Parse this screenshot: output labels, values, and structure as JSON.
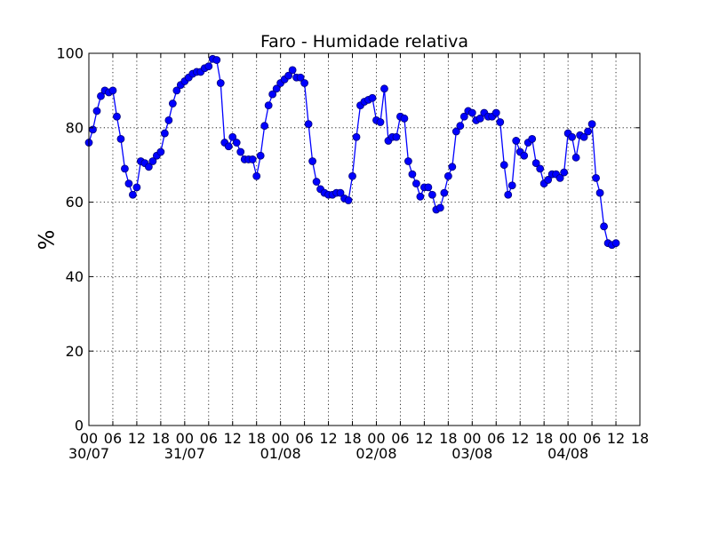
{
  "chart_data": {
    "type": "line",
    "title": "Faro - Humidade relativa",
    "ylabel": "%",
    "xlabel": "",
    "ylim": [
      0,
      100
    ],
    "yticks": [
      0,
      20,
      40,
      60,
      80,
      100
    ],
    "xlim": [
      0,
      138
    ],
    "grid": true,
    "x_tick_positions": [
      0,
      6,
      12,
      18,
      24,
      30,
      36,
      42,
      48,
      54,
      60,
      66,
      72,
      78,
      84,
      90,
      96,
      102,
      108,
      114,
      120,
      126,
      132,
      138
    ],
    "x_tick_labels": [
      "00",
      "06",
      "12",
      "18",
      "00",
      "06",
      "12",
      "18",
      "00",
      "06",
      "12",
      "18",
      "00",
      "06",
      "12",
      "18",
      "00",
      "06",
      "12",
      "18",
      "00",
      "06",
      "12",
      "18"
    ],
    "x_tick_labels_shown": 24,
    "date_labels": [
      {
        "at": 0,
        "label": "30/07"
      },
      {
        "at": 24,
        "label": "31/07"
      },
      {
        "at": 48,
        "label": "01/08"
      },
      {
        "at": 72,
        "label": "02/08"
      },
      {
        "at": 96,
        "label": "03/08"
      },
      {
        "at": 120,
        "label": "04/08"
      }
    ],
    "series": [
      {
        "color": "#0000ff",
        "values": [
          [
            0,
            76
          ],
          [
            1,
            79.5
          ],
          [
            2,
            84.5
          ],
          [
            3,
            88.5
          ],
          [
            4,
            90
          ],
          [
            5,
            89.5
          ],
          [
            6,
            90
          ],
          [
            7,
            83
          ],
          [
            8,
            77
          ],
          [
            9,
            69
          ],
          [
            10,
            65
          ],
          [
            11,
            62
          ],
          [
            12,
            64
          ],
          [
            13,
            71
          ],
          [
            14,
            70.5
          ],
          [
            15,
            69.5
          ],
          [
            16,
            71
          ],
          [
            17,
            72.5
          ],
          [
            18,
            73.5
          ],
          [
            19,
            78.5
          ],
          [
            20,
            82
          ],
          [
            21,
            86.5
          ],
          [
            22,
            90
          ],
          [
            23,
            91.5
          ],
          [
            24,
            92.5
          ],
          [
            25,
            93.5
          ],
          [
            26,
            94.5
          ],
          [
            27,
            95
          ],
          [
            28,
            95
          ],
          [
            29,
            96
          ],
          [
            30,
            96.5
          ],
          [
            31,
            98.5
          ],
          [
            32,
            98.2
          ],
          [
            33,
            92
          ],
          [
            34,
            76
          ],
          [
            35,
            75
          ],
          [
            36,
            77.5
          ],
          [
            37,
            76
          ],
          [
            38,
            73.5
          ],
          [
            39,
            71.5
          ],
          [
            40,
            71.5
          ],
          [
            41,
            71.5
          ],
          [
            42,
            67
          ],
          [
            43,
            72.5
          ],
          [
            44,
            80.5
          ],
          [
            45,
            86
          ],
          [
            46,
            89
          ],
          [
            47,
            90.5
          ],
          [
            48,
            92
          ],
          [
            49,
            93
          ],
          [
            50,
            94
          ],
          [
            51,
            95.5
          ],
          [
            52,
            93.5
          ],
          [
            53,
            93.5
          ],
          [
            54,
            92
          ],
          [
            55,
            81
          ],
          [
            56,
            71
          ],
          [
            57,
            65.5
          ],
          [
            58,
            63.5
          ],
          [
            59,
            62.5
          ],
          [
            60,
            62
          ],
          [
            61,
            62
          ],
          [
            62,
            62.5
          ],
          [
            63,
            62.5
          ],
          [
            64,
            61
          ],
          [
            65,
            60.5
          ],
          [
            66,
            67
          ],
          [
            67,
            77.5
          ],
          [
            68,
            86
          ],
          [
            69,
            87
          ],
          [
            70,
            87.5
          ],
          [
            71,
            88
          ],
          [
            72,
            82
          ],
          [
            73,
            81.5
          ],
          [
            74,
            90.5
          ],
          [
            75,
            76.5
          ],
          [
            76,
            77.5
          ],
          [
            77,
            77.5
          ],
          [
            78,
            83
          ],
          [
            79,
            82.5
          ],
          [
            80,
            71
          ],
          [
            81,
            67.5
          ],
          [
            82,
            65
          ],
          [
            83,
            61.5
          ],
          [
            84,
            64
          ],
          [
            85,
            64
          ],
          [
            86,
            62
          ],
          [
            87,
            58
          ],
          [
            88,
            58.5
          ],
          [
            89,
            62.5
          ],
          [
            90,
            67
          ],
          [
            91,
            69.5
          ],
          [
            92,
            79
          ],
          [
            93,
            80.5
          ],
          [
            94,
            83
          ],
          [
            95,
            84.5
          ],
          [
            96,
            84
          ],
          [
            97,
            82
          ],
          [
            98,
            82.5
          ],
          [
            99,
            84
          ],
          [
            100,
            83
          ],
          [
            101,
            83
          ],
          [
            102,
            84
          ],
          [
            103,
            81.5
          ],
          [
            104,
            70
          ],
          [
            105,
            62
          ],
          [
            106,
            64.5
          ],
          [
            107,
            76.5
          ],
          [
            108,
            73.5
          ],
          [
            109,
            72.5
          ],
          [
            110,
            76
          ],
          [
            111,
            77
          ],
          [
            112,
            70.5
          ],
          [
            113,
            69
          ],
          [
            114,
            65
          ],
          [
            115,
            66
          ],
          [
            116,
            67.5
          ],
          [
            117,
            67.5
          ],
          [
            118,
            66.5
          ],
          [
            119,
            68
          ],
          [
            120,
            78.5
          ],
          [
            121,
            77.5
          ],
          [
            122,
            72
          ],
          [
            123,
            78
          ],
          [
            124,
            77.5
          ],
          [
            125,
            79
          ],
          [
            126,
            81
          ],
          [
            127,
            66.5
          ],
          [
            128,
            62.5
          ],
          [
            129,
            53.5
          ],
          [
            130,
            49
          ],
          [
            131,
            48.5
          ],
          [
            132,
            49
          ]
        ]
      }
    ]
  }
}
